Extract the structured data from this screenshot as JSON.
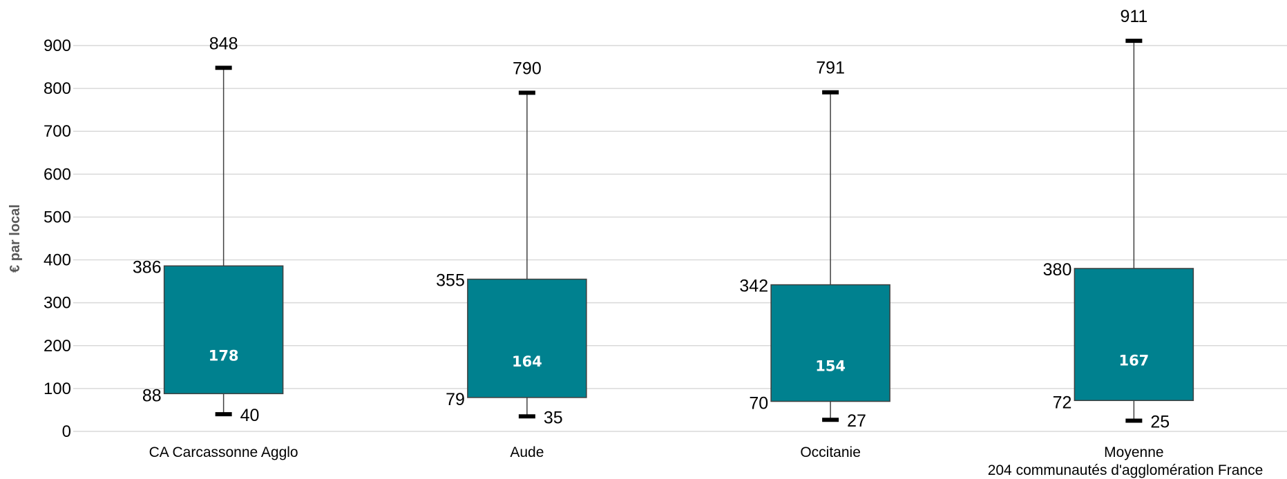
{
  "chart_data": {
    "type": "box",
    "ylabel": "€ par local",
    "ylim": [
      0,
      900
    ],
    "yticks": [
      0,
      100,
      200,
      300,
      400,
      500,
      600,
      700,
      800,
      900
    ],
    "grid": true,
    "box_color": "#00818F",
    "categories": [
      {
        "label": "CA Carcassonne Agglo",
        "label2": "",
        "min": 40,
        "q1": 88,
        "median": 178,
        "q3": 386,
        "max": 848
      },
      {
        "label": "Aude",
        "label2": "",
        "min": 35,
        "q1": 79,
        "median": 164,
        "q3": 355,
        "max": 790
      },
      {
        "label": "Occitanie",
        "label2": "",
        "min": 27,
        "q1": 70,
        "median": 154,
        "q3": 342,
        "max": 791
      },
      {
        "label": "Moyenne",
        "label2": "204 communautés d'agglomération France",
        "min": 25,
        "q1": 72,
        "median": 167,
        "q3": 380,
        "max": 911
      }
    ]
  }
}
